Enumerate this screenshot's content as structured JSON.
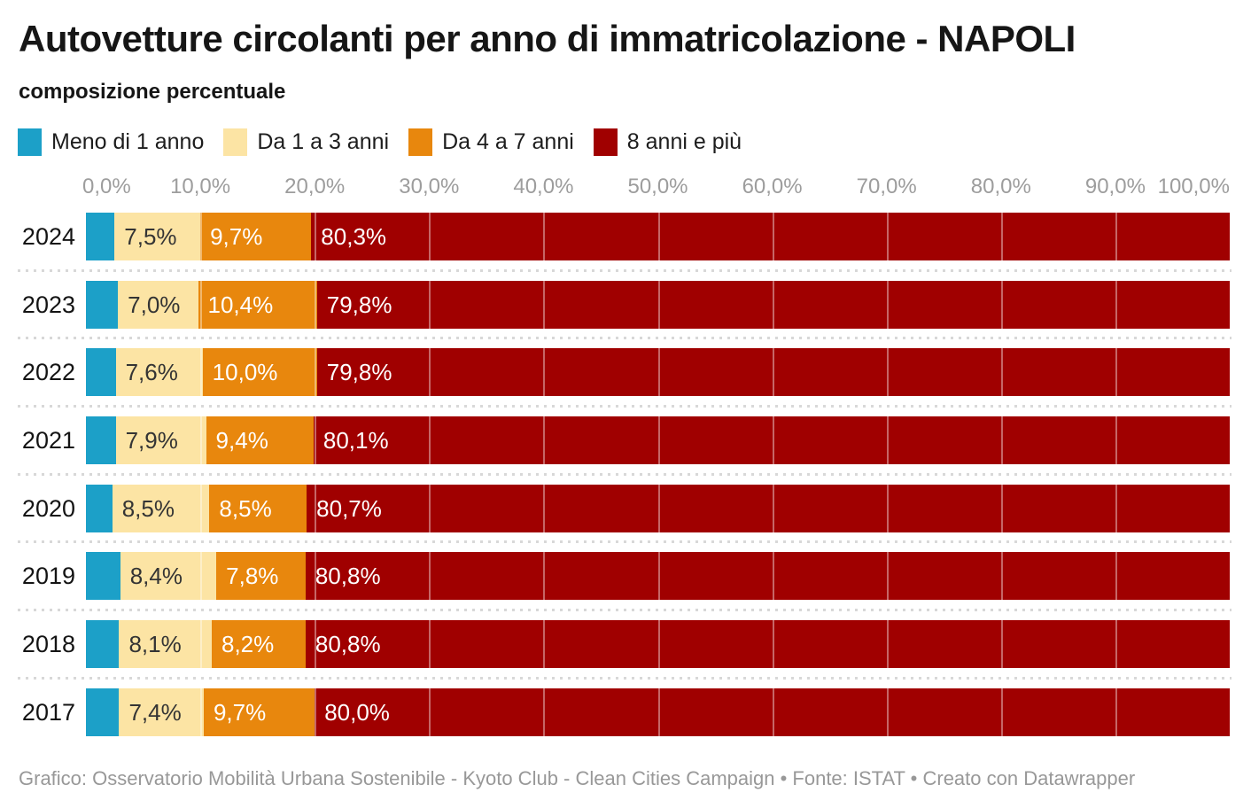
{
  "title": "Autovetture circolanti per anno di immatricolazione - NAPOLI",
  "subtitle": "composizione percentuale",
  "legend": [
    {
      "label": "Meno di 1 anno",
      "color": "#1ca0c8"
    },
    {
      "label": "Da 1 a 3 anni",
      "color": "#fce4a4"
    },
    {
      "label": "Da 4 a 7 anni",
      "color": "#e8870d"
    },
    {
      "label": "8 anni e più",
      "color": "#a00000"
    }
  ],
  "axis": {
    "ticks": [
      "0,0%",
      "10,0%",
      "20,0%",
      "30,0%",
      "40,0%",
      "50,0%",
      "60,0%",
      "70,0%",
      "80,0%",
      "90,0%",
      "100,0%"
    ]
  },
  "chart_data": {
    "type": "bar",
    "orientation": "horizontal",
    "stacked": true,
    "title": "Autovetture circolanti per anno di immatricolazione - NAPOLI",
    "subtitle": "composizione percentuale",
    "xlim": [
      0,
      100
    ],
    "xlabel": "",
    "ylabel": "",
    "grid": true,
    "legend_position": "top",
    "categories": [
      "2024",
      "2023",
      "2022",
      "2021",
      "2020",
      "2019",
      "2018",
      "2017"
    ],
    "series": [
      {
        "name": "Meno di 1 anno",
        "color": "#1ca0c8",
        "label_color": null,
        "values": [
          2.5,
          2.8,
          2.6,
          2.6,
          2.3,
          3.0,
          2.9,
          2.9
        ],
        "labels": [
          "",
          "",
          "",
          "",
          "",
          "",
          "",
          ""
        ]
      },
      {
        "name": "Da 1 a 3 anni",
        "color": "#fce4a4",
        "label_color": "#343434",
        "values": [
          7.5,
          7.0,
          7.6,
          7.9,
          8.5,
          8.4,
          8.1,
          7.4
        ],
        "labels": [
          "7,5%",
          "7,0%",
          "7,6%",
          "7,9%",
          "8,5%",
          "8,4%",
          "8,1%",
          "7,4%"
        ]
      },
      {
        "name": "Da 4 a 7 anni",
        "color": "#e8870d",
        "label_color": "#ffffff",
        "values": [
          9.7,
          10.4,
          10.0,
          9.4,
          8.5,
          7.8,
          8.2,
          9.7
        ],
        "labels": [
          "9,7%",
          "10,4%",
          "10,0%",
          "9,4%",
          "8,5%",
          "7,8%",
          "8,2%",
          "9,7%"
        ]
      },
      {
        "name": "8 anni e più",
        "color": "#a00000",
        "label_color": "#ffffff",
        "values": [
          80.3,
          79.8,
          79.8,
          80.1,
          80.7,
          80.8,
          80.8,
          80.0
        ],
        "labels": [
          "80,3%",
          "79,8%",
          "79,8%",
          "80,1%",
          "80,7%",
          "80,8%",
          "80,8%",
          "80,0%"
        ]
      }
    ]
  },
  "footer": "Grafico: Osservatorio Mobilità Urbana Sostenibile - Kyoto Club - Clean Cities Campaign • Fonte: ISTAT • Creato con Datawrapper"
}
